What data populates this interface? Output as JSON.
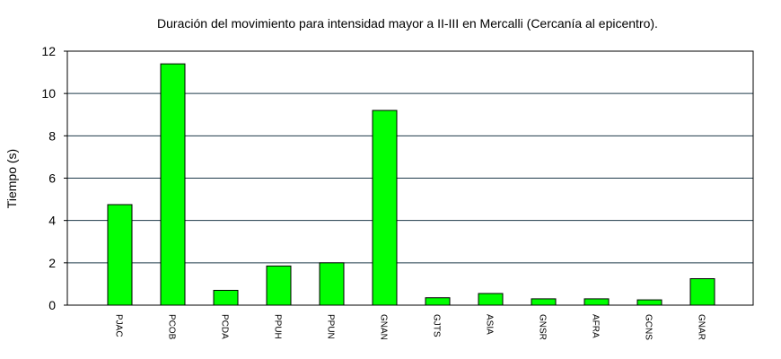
{
  "chart_data": {
    "type": "bar",
    "title": "Duración del movimiento para intensidad mayor a II-III en Mercalli (Cercanía al epicentro).",
    "xlabel": "",
    "ylabel": "Tiempo (s)",
    "ylim": [
      0,
      12
    ],
    "yticks": [
      "0",
      "2",
      "4",
      "6",
      "8",
      "10",
      "12"
    ],
    "grid": true,
    "legend": "none",
    "bar_color": "#00ff00",
    "categories": [
      "PJAC",
      "PCOB",
      "PCDA",
      "PPUH",
      "PPUN",
      "GNAN",
      "GJTS",
      "ASIA",
      "GNSR",
      "AFRA",
      "GCNS",
      "GNAR"
    ],
    "values": [
      4.75,
      11.4,
      0.7,
      1.85,
      2.0,
      9.2,
      0.35,
      0.55,
      0.3,
      0.3,
      0.25,
      1.25
    ]
  }
}
